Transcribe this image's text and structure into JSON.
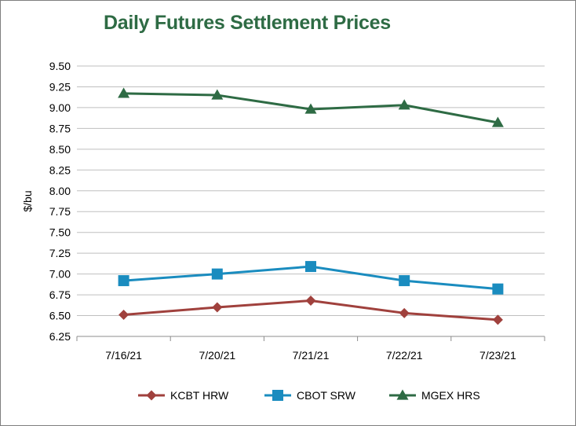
{
  "chart_data": {
    "type": "line",
    "title": "Daily Futures Settlement Prices",
    "xlabel": "",
    "ylabel": "$/bu",
    "categories": [
      "7/16/21",
      "7/20/21",
      "7/21/21",
      "7/22/21",
      "7/23/21"
    ],
    "ylim": [
      6.25,
      9.5
    ],
    "yticks": [
      "6.25",
      "6.50",
      "6.75",
      "7.00",
      "7.25",
      "7.50",
      "7.75",
      "8.00",
      "8.25",
      "8.50",
      "8.75",
      "9.00",
      "9.25",
      "9.50"
    ],
    "grid": true,
    "legend_position": "bottom",
    "series": [
      {
        "name": "KCBT HRW",
        "color": "#a0413d",
        "marker": "diamond",
        "values": [
          6.51,
          6.6,
          6.68,
          6.53,
          6.45
        ]
      },
      {
        "name": "CBOT SRW",
        "color": "#1a8cbf",
        "marker": "square",
        "values": [
          6.92,
          7.0,
          7.09,
          6.92,
          6.82
        ]
      },
      {
        "name": "MGEX HRS",
        "color": "#2e6b44",
        "marker": "triangle",
        "values": [
          9.17,
          9.15,
          8.98,
          9.03,
          8.82
        ]
      }
    ]
  }
}
